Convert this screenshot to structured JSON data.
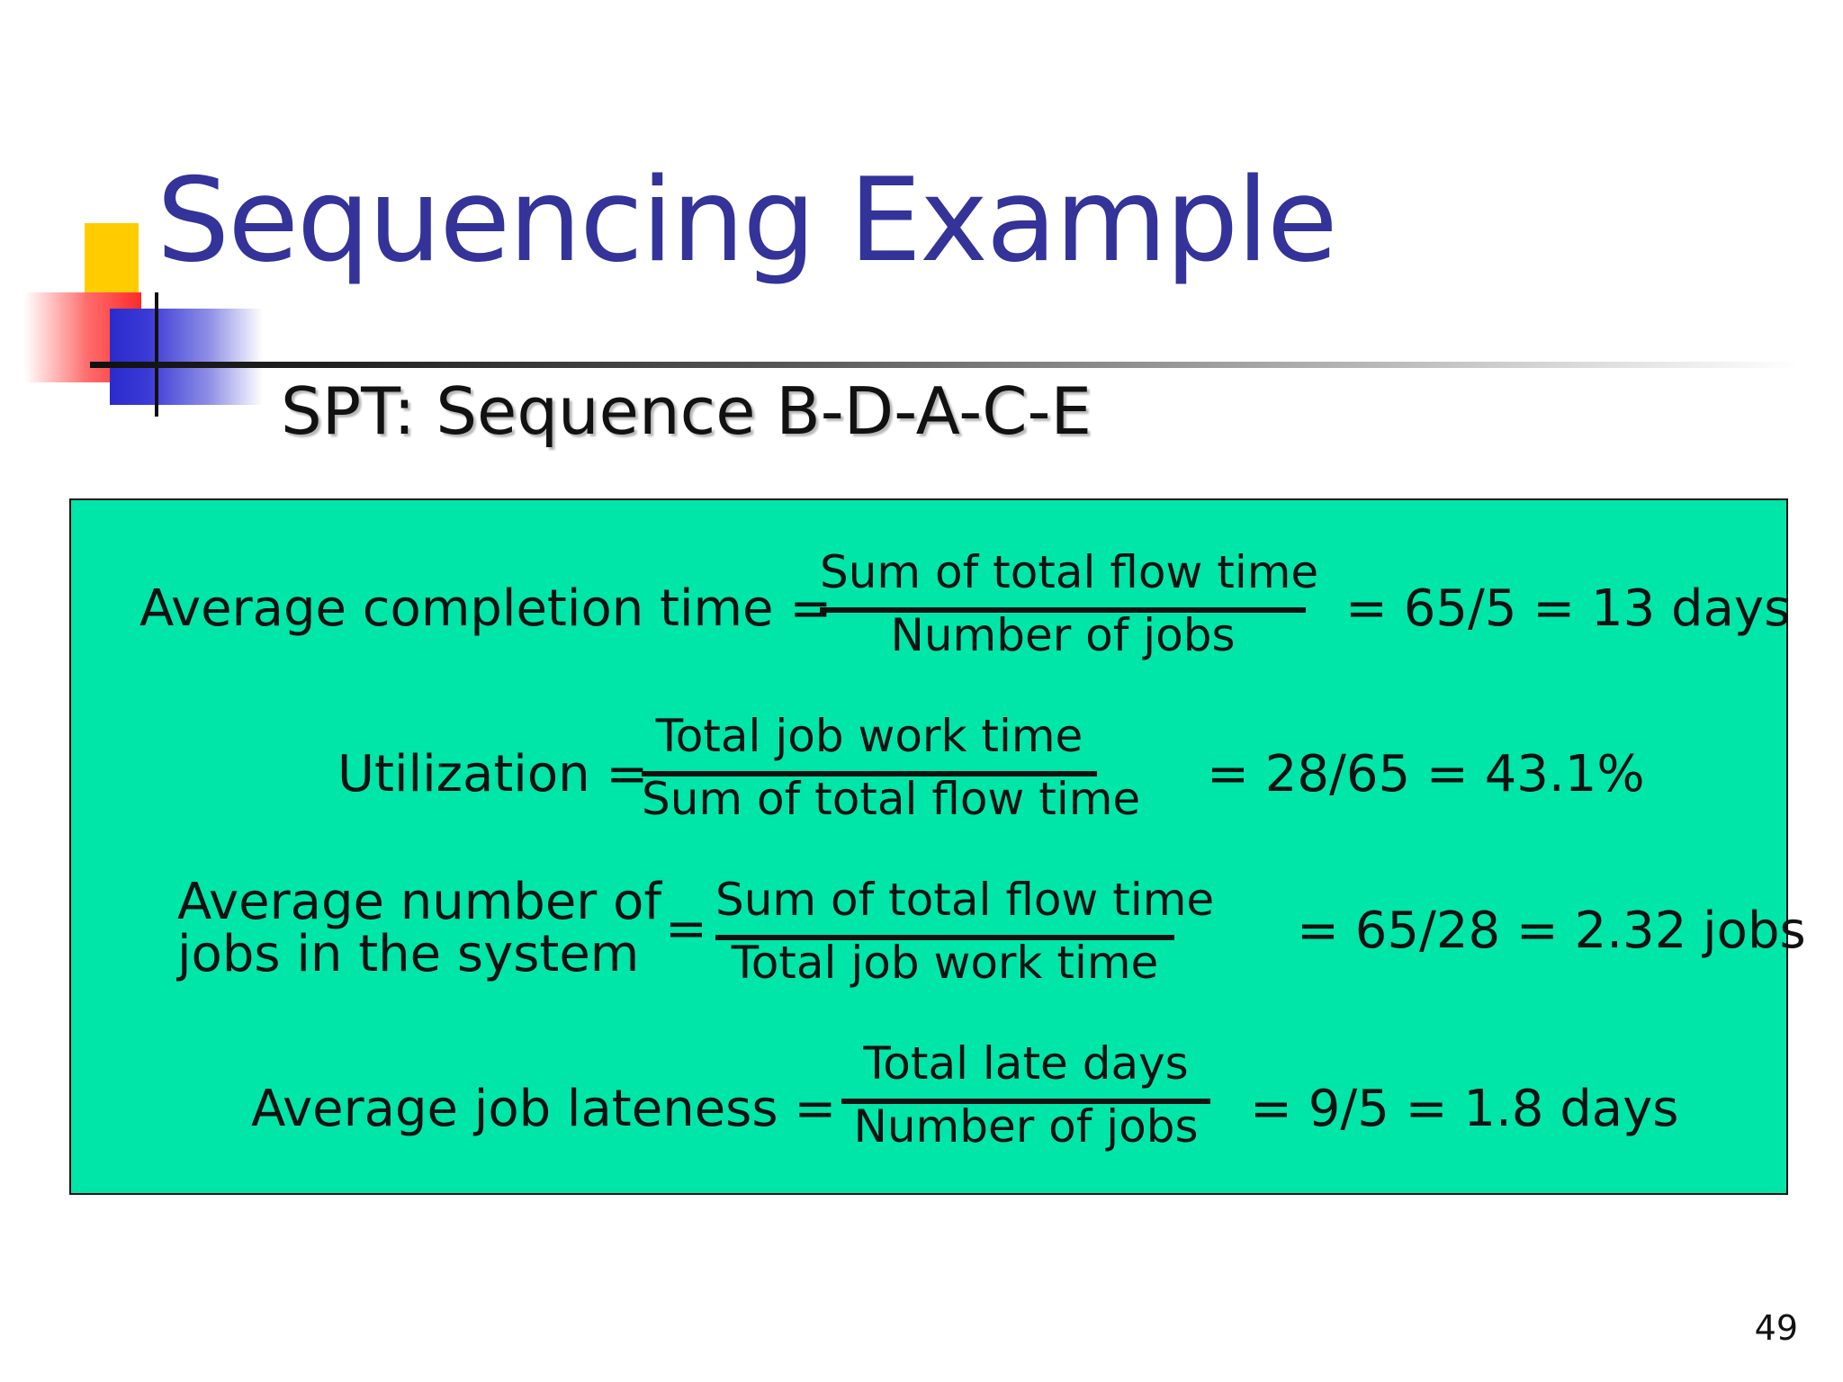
{
  "slide": {
    "title": "Sequencing Example",
    "subtitle": "SPT: Sequence B-D-A-C-E",
    "page_number": "49"
  },
  "formulas": [
    {
      "label": "Average completion time =",
      "numerator": "Sum of total flow time",
      "denominator": "Number of jobs",
      "result": "= 65/5 = 13 days"
    },
    {
      "label": "Utilization =",
      "numerator": "Total job work time",
      "denominator": "Sum of total flow time",
      "result": "= 28/65 = 43.1%"
    },
    {
      "label_line1": "Average number of",
      "label_line2": "jobs in the system",
      "equals": "=",
      "numerator": "Sum of total flow time",
      "denominator": "Total job work time",
      "result": "= 65/28 = 2.32 jobs"
    },
    {
      "label": "Average job lateness =",
      "numerator": "Total late days",
      "denominator": "Number of jobs",
      "result": "= 9/5 = 1.8 days"
    }
  ],
  "colors": {
    "title": "#333399",
    "panel_background": "#00e6a8",
    "text": "#111111"
  }
}
